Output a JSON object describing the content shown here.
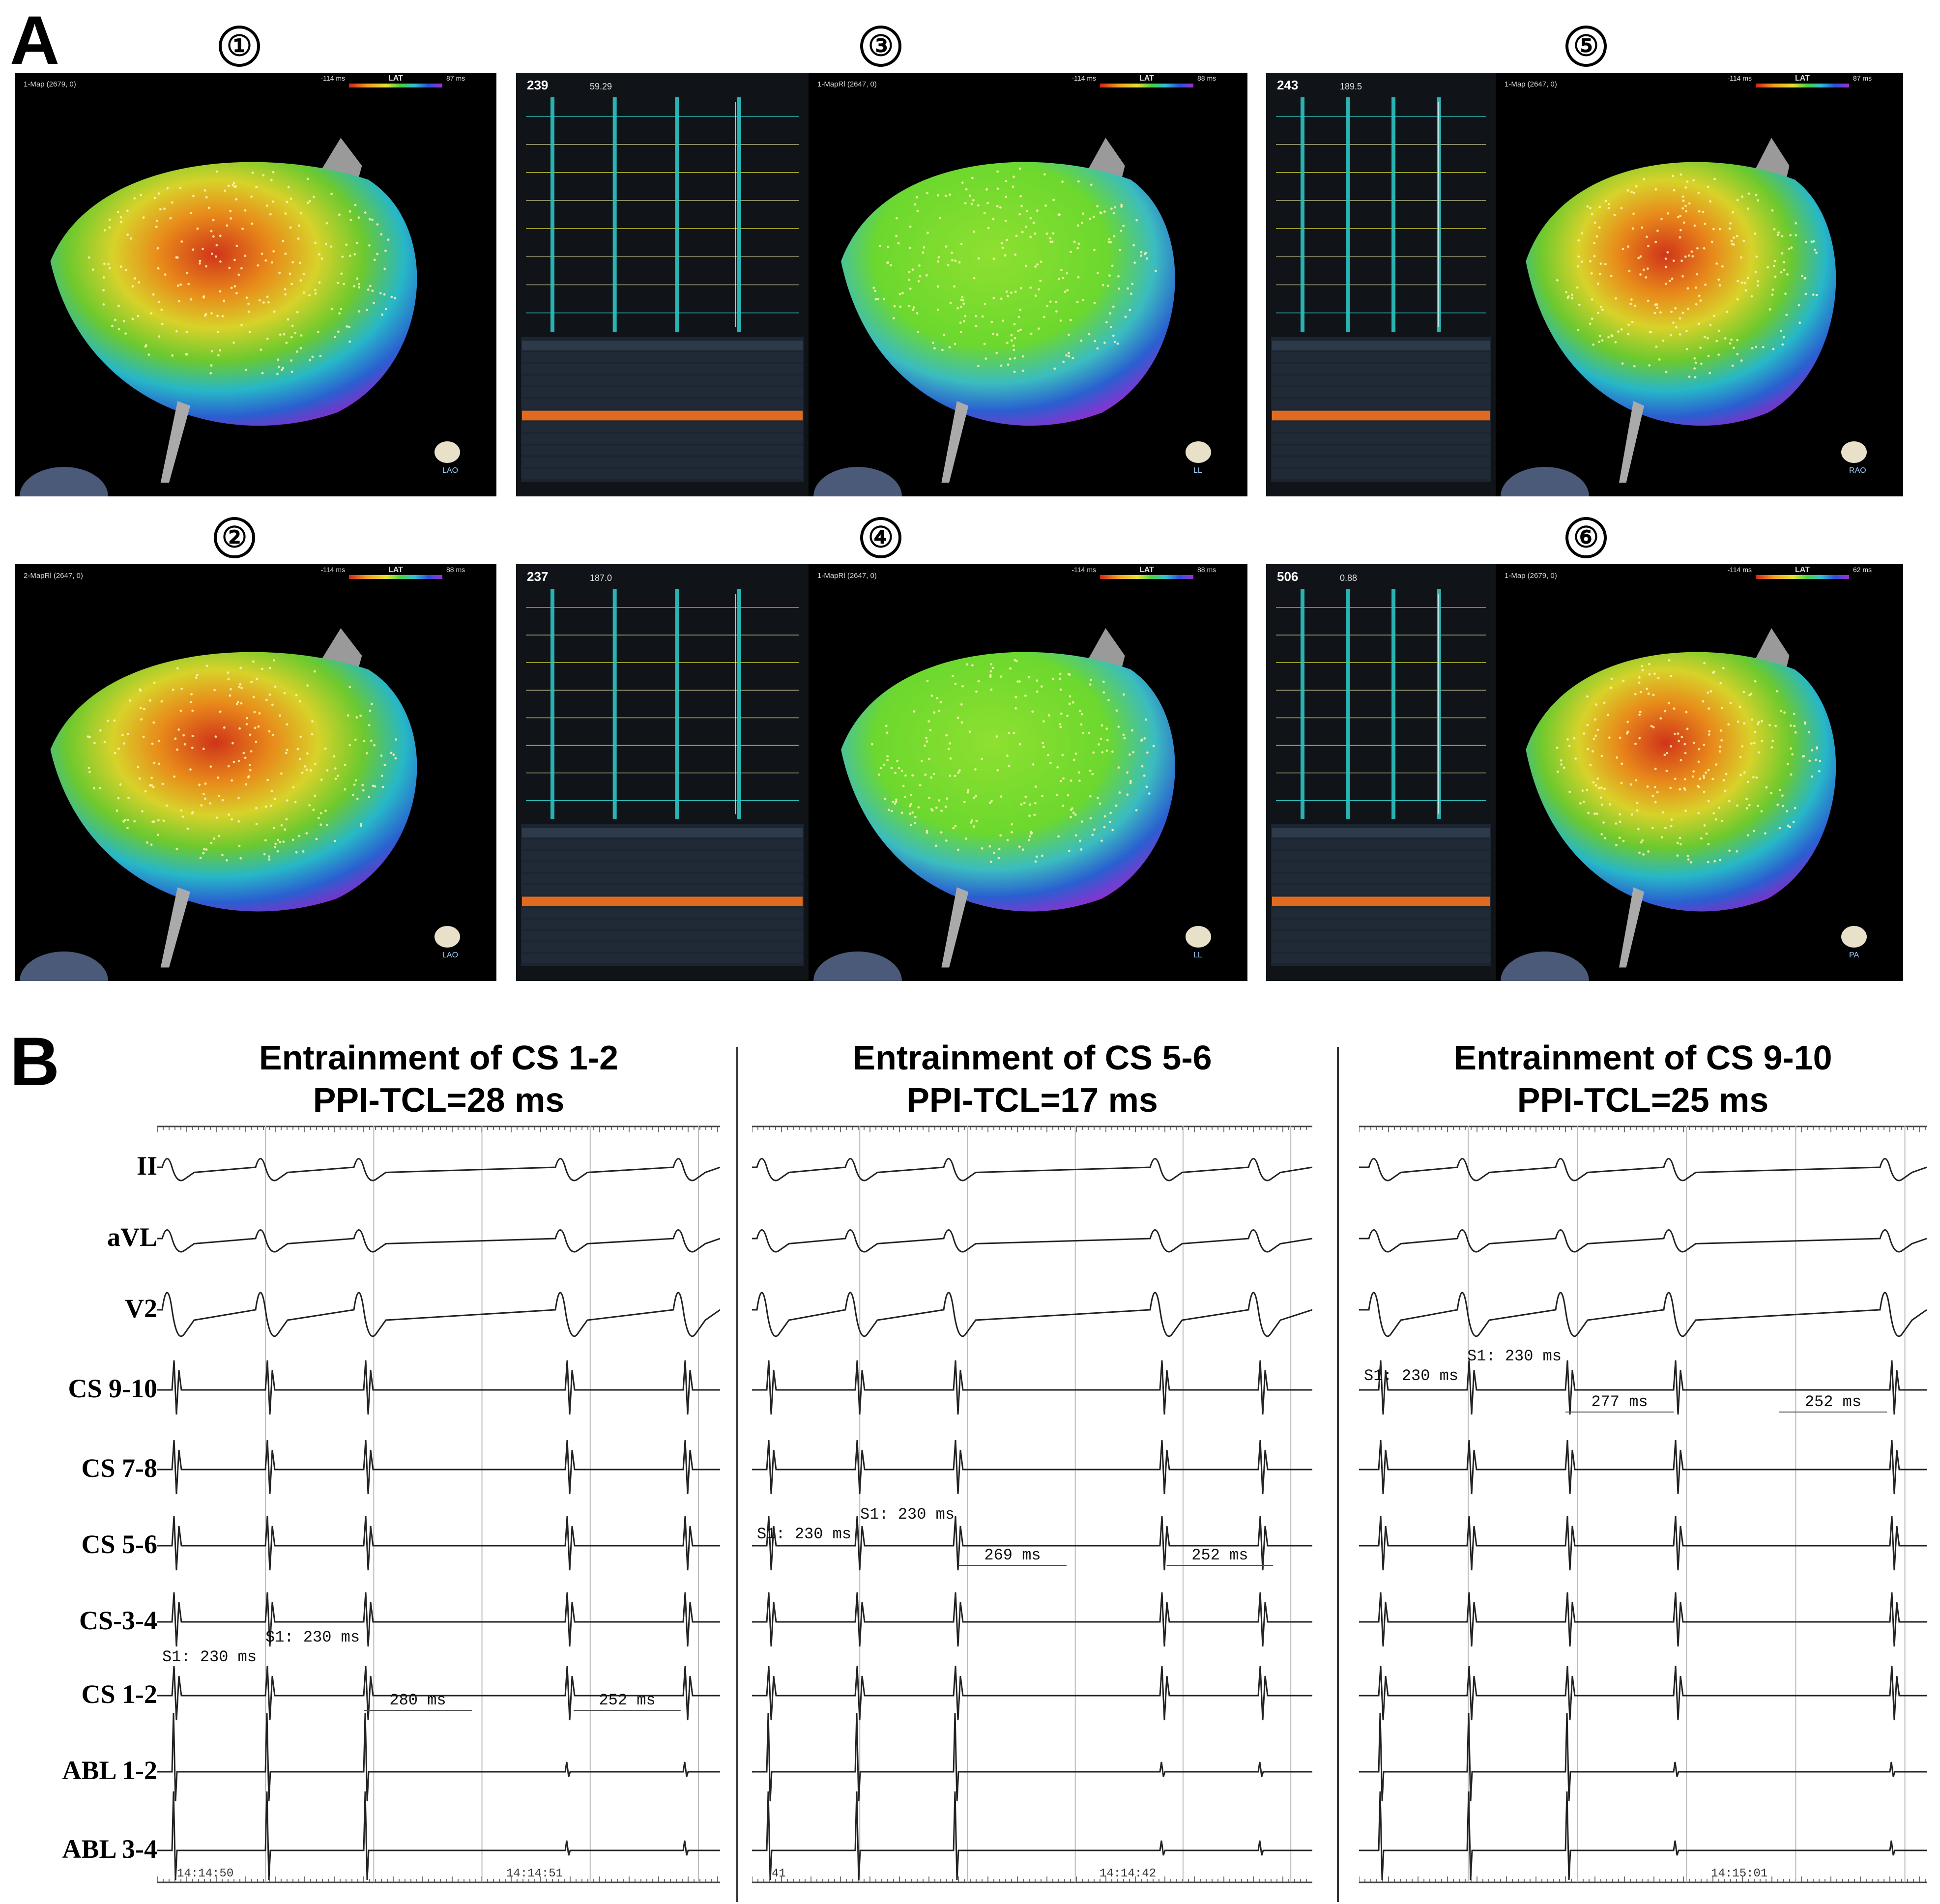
{
  "panel_a": {
    "label": "A",
    "screens": [
      {
        "number": "①",
        "map_name": "1-Map (2679, 0)",
        "scale_low": "-114 ms",
        "scale_mid": "LAT",
        "scale_high": "87 ms",
        "view": "LAO"
      },
      {
        "number": "②",
        "map_name": "2-MapRl (2647, 0)",
        "scale_low": "-114 ms",
        "scale_mid": "LAT",
        "scale_high": "88 ms",
        "view": "LAO"
      },
      {
        "number": "③",
        "cl": "239",
        "loc": "59.29",
        "map_name": "1-MapRl (2647, 0)",
        "scale_low": "-114 ms",
        "scale_mid": "LAT",
        "scale_high": "88 ms",
        "view": "LL"
      },
      {
        "number": "④",
        "cl": "237",
        "loc": "187.0",
        "map_name": "1-MapRl (2647, 0)",
        "scale_low": "-114 ms",
        "scale_mid": "LAT",
        "scale_high": "88 ms",
        "view": "LL"
      },
      {
        "number": "⑤",
        "cl": "243",
        "loc": "189.5",
        "map_name": "1-Map (2647, 0)",
        "scale_low": "-114 ms",
        "scale_mid": "LAT",
        "scale_high": "87 ms",
        "view": "RAO"
      },
      {
        "number": "⑥",
        "cl": "506",
        "loc": "0.88",
        "map_name": "1-Map (2679, 0)",
        "scale_low": "-114 ms",
        "scale_mid": "LAT",
        "scale_high": "62 ms",
        "view": "PA"
      }
    ]
  },
  "panel_b": {
    "label": "B",
    "leads": [
      "II",
      "aVL",
      "V2",
      "CS 9-10",
      "CS 7-8",
      "CS 5-6",
      "CS-3-4",
      "CS 1-2",
      "ABL 1-2",
      "ABL 3-4"
    ],
    "sections": [
      {
        "title1": "Entrainment of CS 1-2",
        "title2": "PPI-TCL=28 ms",
        "s1a": "S1: 230 ms",
        "s1b": "S1: 230 ms",
        "ppi": "280 ms",
        "tcl": "252 ms",
        "time_left": "14:14:50",
        "time_right": "14:14:51"
      },
      {
        "title1": "Entrainment of CS 5-6",
        "title2": "PPI-TCL=17 ms",
        "s1a": "S1: 230 ms",
        "s1b": "S1: 230 ms",
        "ppi": "269 ms",
        "tcl": "252 ms",
        "time_left": "41",
        "time_right": "14:14:42"
      },
      {
        "title1": "Entrainment of CS 9-10",
        "title2": "PPI-TCL=25 ms",
        "s1a": "S1: 230 ms",
        "s1b": "S1: 230 ms",
        "ppi": "277 ms",
        "tcl": "252 ms",
        "time_left": "",
        "time_right": "14:15:01"
      }
    ]
  },
  "colors": {
    "ecg": "#222222",
    "screen_bg": "#000000",
    "egm_teal": "#2ec4c4",
    "egm_yellow": "#c9c92a"
  }
}
